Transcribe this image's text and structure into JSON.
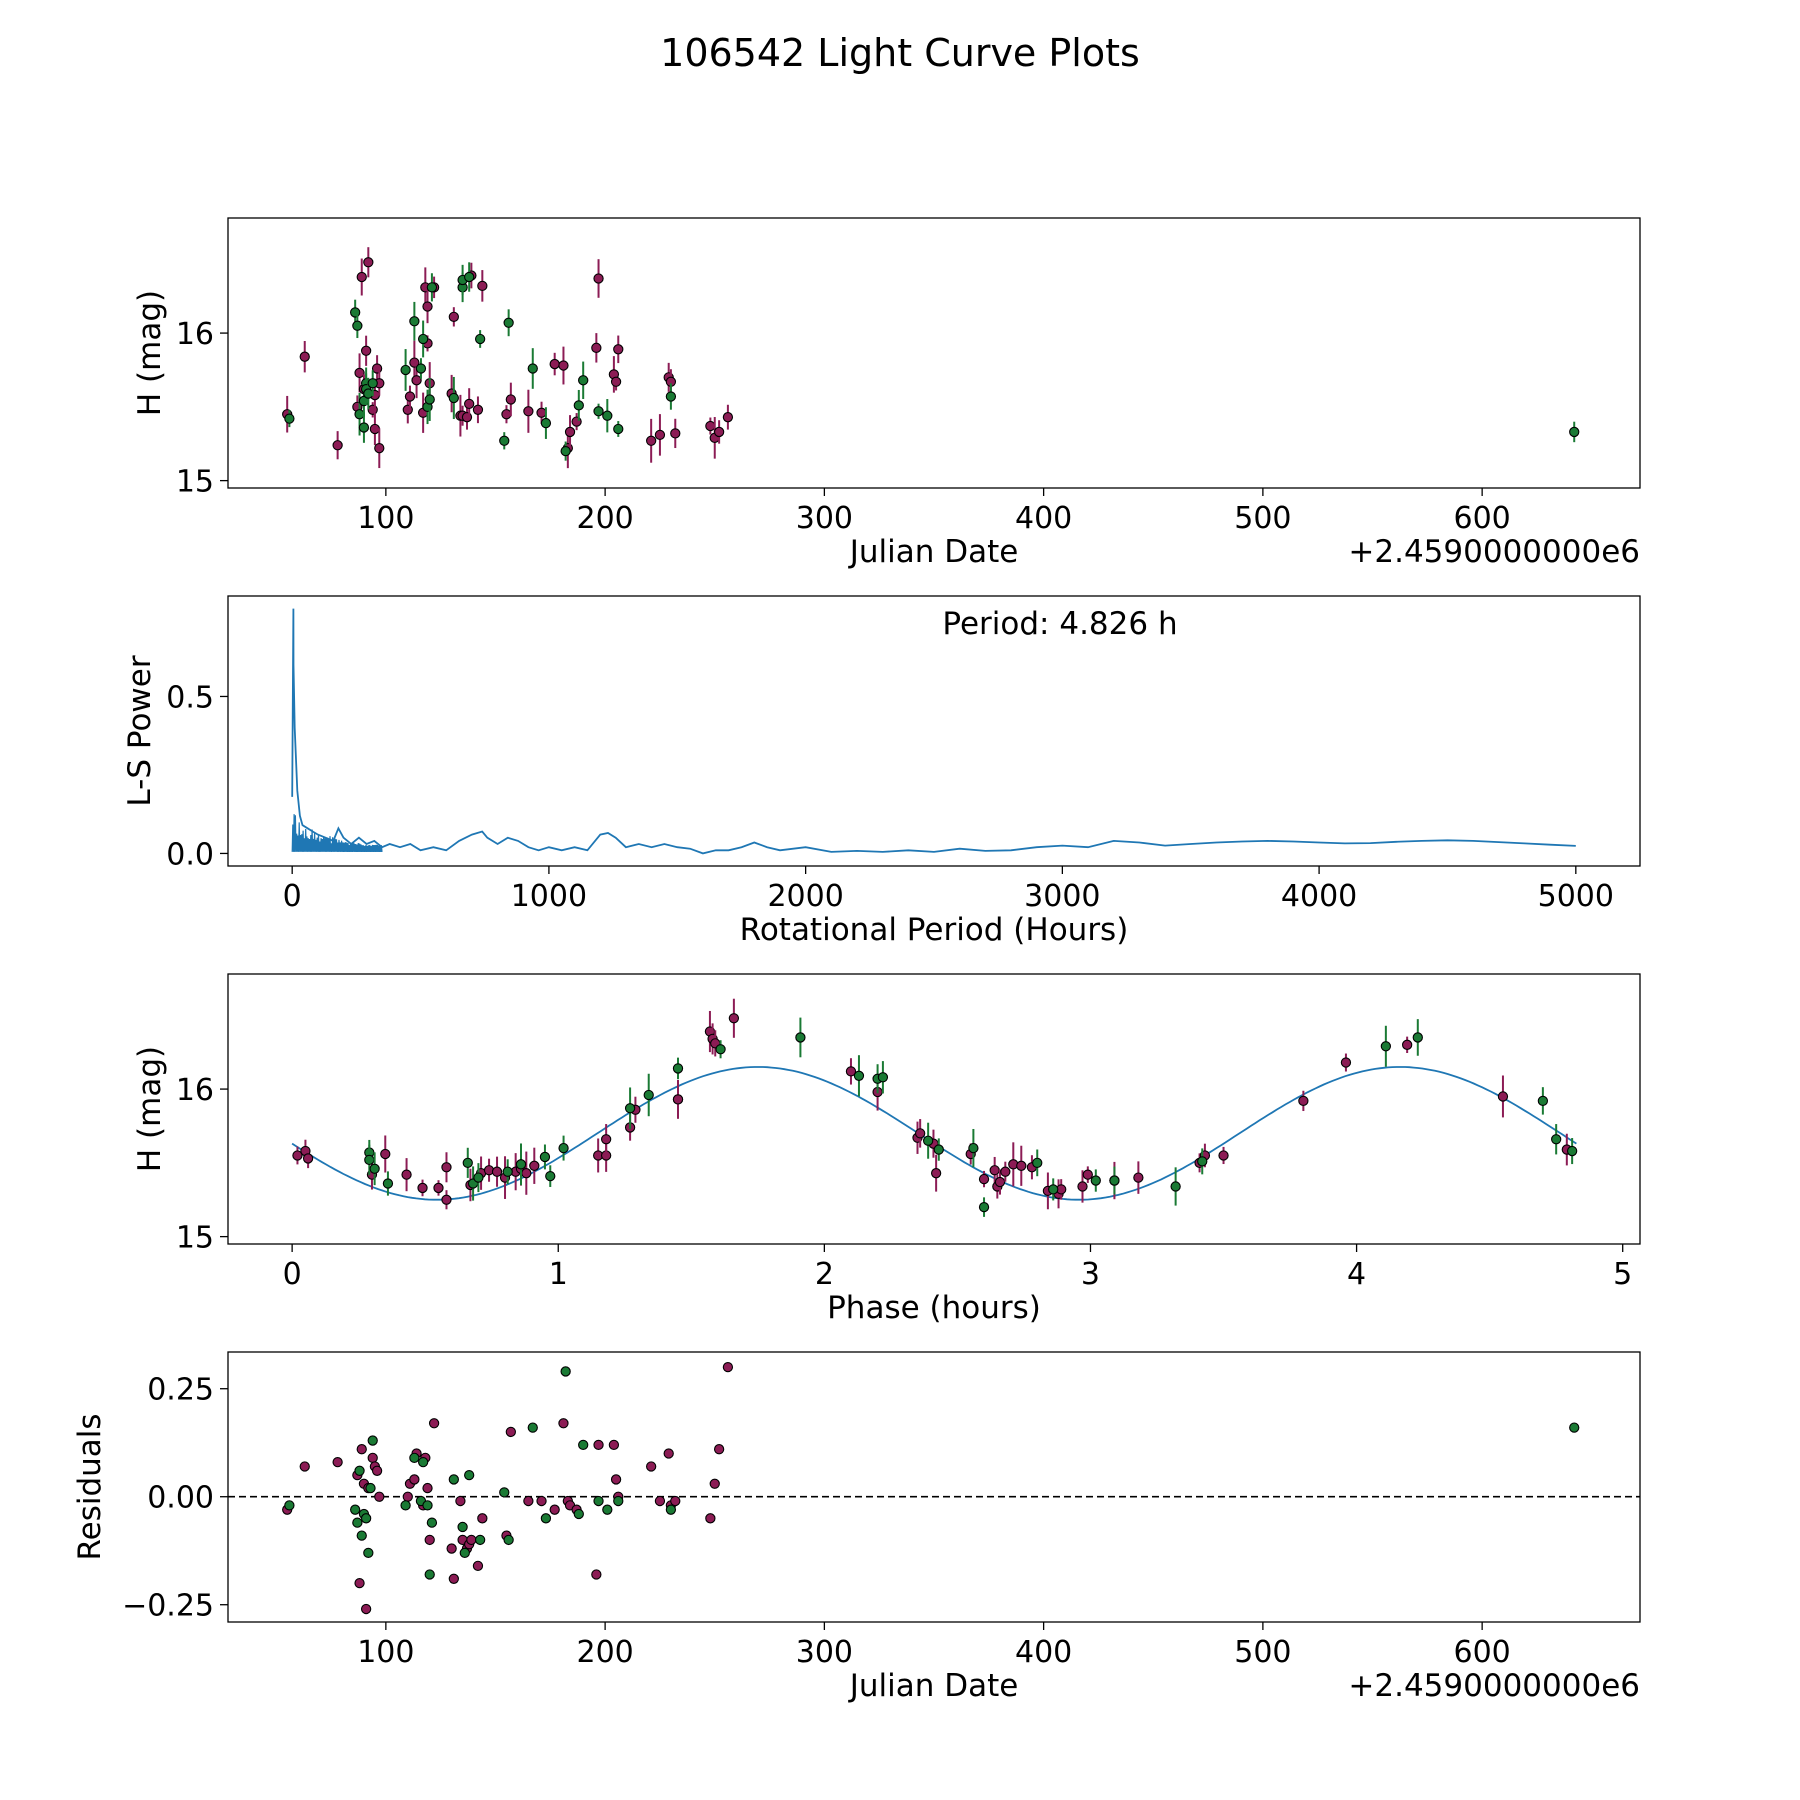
{
  "figure_title": "106542 Light Curve Plots",
  "colors": {
    "magenta": "#8c1c55",
    "green": "#1a7a34",
    "curve": "#1f77b4",
    "edge": "#000000"
  },
  "chart_data": [
    {
      "type": "scatter",
      "id": "lightcurve",
      "xlabel": "Julian Date",
      "ylabel": "H (mag)",
      "offset_text": "+2.4590000000e6",
      "xlim": [
        28,
        672
      ],
      "ylim": [
        14.95,
        16.78
      ],
      "y_inverted": false,
      "xticks": [
        100,
        200,
        300,
        400,
        500,
        600
      ],
      "xtick_labels": [
        "100",
        "200",
        "300",
        "400",
        "500",
        "600"
      ],
      "yticks": [
        15,
        16
      ],
      "ytick_labels": [
        "15",
        "16"
      ],
      "series": [
        {
          "name": "magenta",
          "color_key": "magenta",
          "x": [
            55,
            63,
            78,
            87,
            88,
            89,
            90,
            91,
            92,
            94,
            95,
            95,
            96,
            97,
            97,
            110,
            111,
            113,
            114,
            117,
            118,
            119,
            119,
            120,
            122,
            130,
            131,
            134,
            135,
            137,
            138,
            139,
            142,
            144,
            155,
            157,
            165,
            171,
            177,
            181,
            183,
            184,
            187,
            196,
            197,
            204,
            205,
            206,
            221,
            225,
            229,
            230,
            232,
            248,
            250,
            252,
            256
          ],
          "y": [
            15.45,
            15.84,
            15.24,
            15.5,
            15.73,
            16.38,
            15.62,
            15.88,
            16.48,
            15.48,
            15.35,
            15.58,
            15.76,
            15.22,
            15.66,
            15.48,
            15.57,
            15.8,
            15.68,
            15.46,
            16.31,
            15.93,
            16.18,
            15.66,
            16.31,
            15.59,
            16.11,
            15.44,
            15.44,
            15.43,
            15.52,
            16.39,
            15.48,
            16.32,
            15.45,
            15.55,
            15.47,
            15.46,
            15.79,
            15.78,
            15.22,
            15.33,
            15.4,
            15.9,
            16.37,
            15.72,
            15.67,
            15.89,
            15.27,
            15.31,
            15.7,
            15.67,
            15.32,
            15.37,
            15.29,
            15.33,
            15.43
          ]
        },
        {
          "name": "green",
          "color_key": "green",
          "x": [
            56,
            86,
            87,
            88,
            90,
            90,
            91,
            91,
            92,
            94,
            109,
            113,
            116,
            117,
            119,
            120,
            121,
            131,
            135,
            135,
            138,
            143,
            154,
            156,
            167,
            173,
            182,
            188,
            190,
            197,
            201,
            206,
            230,
            642
          ],
          "y": [
            15.42,
            16.14,
            16.05,
            15.45,
            15.36,
            15.54,
            15.66,
            15.62,
            15.59,
            15.66,
            15.75,
            16.08,
            15.76,
            15.96,
            15.5,
            15.55,
            16.31,
            15.56,
            16.31,
            16.36,
            16.38,
            15.96,
            15.27,
            16.07,
            15.76,
            15.39,
            15.2,
            15.51,
            15.68,
            15.47,
            15.44,
            15.35,
            15.57,
            15.33
          ]
        }
      ]
    },
    {
      "type": "line",
      "id": "periodogram",
      "xlabel": "Rotational Period (Hours)",
      "ylabel": "L-S Power",
      "annotation": "Period: 4.826 h",
      "xlim": [
        -250,
        5250
      ],
      "ylim": [
        -0.04,
        0.82
      ],
      "xticks": [
        0,
        1000,
        2000,
        3000,
        4000,
        5000
      ],
      "xtick_labels": [
        "0",
        "1000",
        "2000",
        "3000",
        "4000",
        "5000"
      ],
      "yticks": [
        0.0,
        0.5
      ],
      "ytick_labels": [
        "0.0",
        "0.5"
      ],
      "series": [
        {
          "name": "L-S power",
          "color_key": "curve",
          "x": [
            0,
            4.8,
            5,
            10,
            20,
            30,
            40,
            60,
            80,
            100,
            130,
            160,
            180,
            200,
            230,
            260,
            290,
            320,
            350,
            380,
            420,
            460,
            500,
            550,
            600,
            650,
            700,
            740,
            760,
            800,
            840,
            880,
            920,
            960,
            1000,
            1050,
            1100,
            1150,
            1200,
            1230,
            1260,
            1300,
            1350,
            1400,
            1450,
            1500,
            1550,
            1600,
            1650,
            1700,
            1750,
            1800,
            1850,
            1900,
            2000,
            2100,
            2200,
            2300,
            2400,
            2500,
            2600,
            2700,
            2800,
            2900,
            3000,
            3100,
            3200,
            3300,
            3400,
            3500,
            3600,
            3700,
            3800,
            3900,
            4000,
            4100,
            4200,
            4300,
            4400,
            4500,
            4600,
            4700,
            4800,
            4900,
            5000
          ],
          "y": [
            0.18,
            0.78,
            0.6,
            0.4,
            0.2,
            0.12,
            0.09,
            0.08,
            0.07,
            0.06,
            0.05,
            0.04,
            0.08,
            0.05,
            0.03,
            0.05,
            0.03,
            0.04,
            0.02,
            0.03,
            0.02,
            0.03,
            0.01,
            0.02,
            0.01,
            0.04,
            0.06,
            0.07,
            0.05,
            0.03,
            0.05,
            0.04,
            0.02,
            0.01,
            0.02,
            0.01,
            0.02,
            0.01,
            0.06,
            0.065,
            0.05,
            0.02,
            0.03,
            0.02,
            0.03,
            0.02,
            0.015,
            0.0,
            0.01,
            0.01,
            0.02,
            0.035,
            0.02,
            0.01,
            0.02,
            0.005,
            0.008,
            0.005,
            0.01,
            0.005,
            0.015,
            0.008,
            0.01,
            0.02,
            0.025,
            0.02,
            0.04,
            0.035,
            0.025,
            0.03,
            0.035,
            0.038,
            0.04,
            0.038,
            0.035,
            0.032,
            0.033,
            0.037,
            0.04,
            0.042,
            0.04,
            0.036,
            0.032,
            0.028,
            0.024
          ]
        }
      ]
    },
    {
      "type": "scatter",
      "id": "phase",
      "xlabel": "Phase (hours)",
      "ylabel": "H (mag)",
      "xlim": [
        -0.241,
        5.065
      ],
      "ylim": [
        14.95,
        16.78
      ],
      "xticks": [
        0,
        1,
        2,
        3,
        4,
        5
      ],
      "xtick_labels": [
        "0",
        "1",
        "2",
        "3",
        "4",
        "5"
      ],
      "yticks": [
        15,
        16
      ],
      "ytick_labels": [
        "15",
        "16"
      ],
      "fit": {
        "period_hours": 4.826,
        "mean": 15.7,
        "amplitude": 0.45,
        "x_start": 0,
        "x_end": 4.826,
        "color_key": "curve"
      },
      "series": [
        {
          "name": "magenta",
          "color_key": "magenta",
          "x": [
            0.02,
            0.05,
            0.06,
            0.3,
            0.35,
            0.43,
            0.49,
            0.55,
            0.58,
            0.58,
            0.67,
            0.71,
            0.74,
            0.77,
            0.8,
            0.84,
            0.86,
            0.88,
            0.91,
            1.15,
            1.18,
            1.18,
            1.27,
            1.29,
            1.45,
            1.45,
            1.57,
            1.58,
            1.59,
            1.66,
            2.1,
            2.2,
            2.35,
            2.36,
            2.41,
            2.42,
            2.55,
            2.6,
            2.64,
            2.65,
            2.66,
            2.68,
            2.71,
            2.74,
            2.78,
            2.84,
            2.88,
            2.89,
            2.97,
            2.99,
            3.09,
            3.18,
            3.41,
            3.43,
            3.5,
            3.8,
            3.96,
            4.19,
            4.55,
            4.79
          ],
          "y": [
            15.55,
            15.58,
            15.53,
            15.42,
            15.56,
            15.42,
            15.33,
            15.33,
            15.47,
            15.25,
            15.35,
            15.43,
            15.45,
            15.44,
            15.4,
            15.44,
            15.46,
            15.43,
            15.48,
            15.55,
            15.55,
            15.66,
            15.74,
            15.86,
            15.93,
            15.93,
            16.39,
            16.34,
            16.31,
            16.48,
            16.12,
            15.98,
            15.67,
            15.7,
            15.63,
            15.43,
            15.56,
            15.39,
            15.45,
            15.34,
            15.37,
            15.44,
            15.49,
            15.48,
            15.47,
            15.31,
            15.29,
            15.32,
            15.34,
            15.42,
            15.38,
            15.4,
            15.5,
            15.55,
            15.55,
            15.92,
            16.18,
            16.3,
            15.95,
            15.59
          ]
        },
        {
          "name": "green",
          "color_key": "green",
          "x": [
            0.29,
            0.29,
            0.31,
            0.36,
            0.66,
            0.68,
            0.7,
            0.81,
            0.86,
            0.95,
            0.97,
            1.02,
            1.27,
            1.34,
            1.45,
            1.61,
            1.91,
            2.13,
            2.2,
            2.22,
            2.39,
            2.43,
            2.56,
            2.6,
            2.8,
            2.86,
            3.02,
            3.09,
            3.32,
            3.42,
            4.11,
            4.23,
            4.7,
            4.75,
            4.81
          ],
          "y": [
            15.57,
            15.52,
            15.46,
            15.36,
            15.5,
            15.36,
            15.4,
            15.44,
            15.49,
            15.54,
            15.41,
            15.6,
            15.87,
            15.96,
            16.14,
            16.27,
            16.35,
            16.09,
            16.07,
            16.08,
            15.65,
            15.59,
            15.6,
            15.2,
            15.5,
            15.32,
            15.38,
            15.38,
            15.34,
            15.51,
            16.29,
            16.35,
            15.92,
            15.66,
            15.58
          ]
        }
      ]
    },
    {
      "type": "scatter",
      "id": "residuals",
      "xlabel": "Julian Date",
      "ylabel": "Residuals",
      "offset_text": "+2.4590000000e6",
      "xlim": [
        28,
        672
      ],
      "ylim": [
        -0.29,
        0.335
      ],
      "xticks": [
        100,
        200,
        300,
        400,
        500,
        600
      ],
      "xtick_labels": [
        "100",
        "200",
        "300",
        "400",
        "500",
        "600"
      ],
      "yticks": [
        -0.25,
        0.0,
        0.25
      ],
      "ytick_labels": [
        "−0.25",
        "0.00",
        "0.25"
      ],
      "reference_line": 0.0,
      "series": [
        {
          "name": "magenta",
          "color_key": "magenta",
          "x": [
            55,
            63,
            78,
            87,
            88,
            89,
            90,
            91,
            92,
            94,
            95,
            96,
            97,
            110,
            111,
            113,
            114,
            117,
            118,
            119,
            120,
            122,
            130,
            131,
            134,
            135,
            137,
            138,
            139,
            142,
            144,
            155,
            157,
            165,
            171,
            177,
            181,
            183,
            184,
            187,
            196,
            197,
            204,
            205,
            206,
            221,
            225,
            229,
            230,
            232,
            248,
            250,
            252,
            256
          ],
          "y": [
            -0.03,
            0.07,
            0.08,
            0.05,
            -0.2,
            0.11,
            0.03,
            -0.26,
            0.02,
            0.09,
            0.07,
            0.06,
            0.0,
            0.0,
            0.03,
            0.04,
            0.1,
            -0.02,
            0.09,
            0.02,
            -0.1,
            0.17,
            -0.12,
            -0.19,
            -0.01,
            -0.1,
            -0.12,
            -0.11,
            -0.1,
            -0.16,
            -0.05,
            -0.09,
            0.15,
            -0.01,
            -0.01,
            -0.03,
            0.17,
            -0.01,
            -0.02,
            -0.03,
            -0.18,
            0.12,
            0.12,
            0.04,
            0.0,
            0.07,
            -0.01,
            0.1,
            -0.02,
            -0.01,
            -0.05,
            0.03,
            0.11,
            0.3
          ]
        },
        {
          "name": "green",
          "color_key": "green",
          "x": [
            56,
            86,
            87,
            88,
            89,
            90,
            91,
            92,
            93,
            94,
            109,
            113,
            116,
            117,
            119,
            120,
            121,
            131,
            135,
            136,
            138,
            143,
            154,
            156,
            167,
            173,
            182,
            188,
            190,
            197,
            201,
            206,
            230,
            642
          ],
          "y": [
            -0.02,
            -0.03,
            -0.06,
            0.06,
            -0.09,
            -0.04,
            -0.05,
            -0.13,
            0.02,
            0.13,
            -0.02,
            0.09,
            -0.01,
            0.08,
            -0.02,
            -0.18,
            -0.06,
            0.04,
            -0.07,
            -0.13,
            0.05,
            -0.1,
            0.01,
            -0.1,
            0.16,
            -0.05,
            0.29,
            -0.04,
            0.12,
            -0.01,
            -0.03,
            -0.01,
            -0.03,
            0.16
          ]
        }
      ]
    }
  ]
}
